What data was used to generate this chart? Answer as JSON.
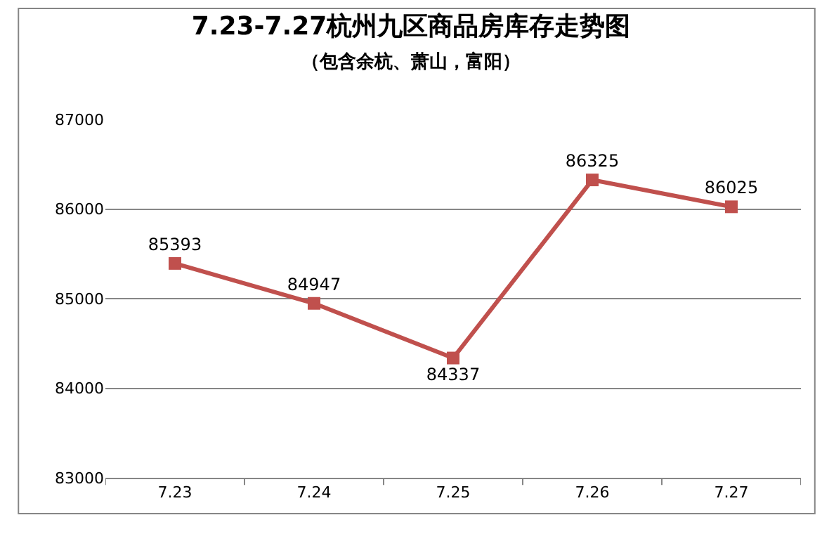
{
  "chart_data": {
    "type": "line",
    "title": "7.23-7.27杭州九区商品房库存走势图",
    "subtitle": "（包含余杭、萧山，富阳）",
    "categories": [
      "7.23",
      "7.24",
      "7.25",
      "7.26",
      "7.27"
    ],
    "series": [
      {
        "color": "#c0504d",
        "values": [
          85393,
          84947,
          84337,
          86325,
          86025
        ]
      }
    ],
    "ylim": [
      83000,
      87000
    ],
    "yticks": [
      83000,
      84000,
      85000,
      86000,
      87000
    ],
    "grid": "y",
    "marker": "square",
    "line_style": "solid",
    "data_labels": true,
    "legend": false
  }
}
